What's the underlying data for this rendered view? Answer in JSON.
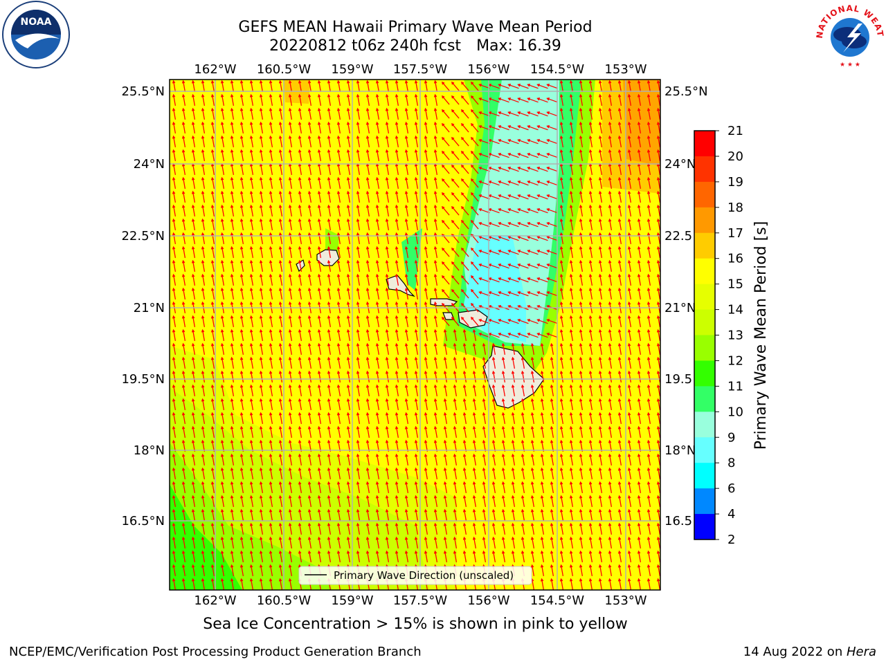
{
  "header": {
    "title_line1": "GEFS MEAN Hawaii Primary Wave Mean Period",
    "title_date": "20220812 t06z 240h fcst",
    "title_max": "Max: 16.39"
  },
  "logos": {
    "left": "noaa-logo",
    "left_text": "NOAA",
    "right": "nws-logo",
    "right_text": "NATIONAL WEATHER SERVICE"
  },
  "map": {
    "lon_ticks": [
      "162°W",
      "160.5°W",
      "159°W",
      "157.5°W",
      "156°W",
      "154.5°W",
      "153°W"
    ],
    "lat_ticks_left": [
      "25.5°N",
      "24°N",
      "22.5°N",
      "21°N",
      "19.5°N",
      "18°N",
      "16.5°N"
    ],
    "lat_ticks_right": [
      "25.5°N",
      "24°N",
      "22.5",
      "21°N",
      "19.5",
      "18°N",
      "16.5"
    ],
    "legend_label": "Primary Wave Direction (unscaled)",
    "arrow_color": "#ff0000",
    "grid_color": "#b0b0b0",
    "land_color": "#efecdc"
  },
  "colorbar": {
    "label": "Primary Wave Mean Period [s]",
    "ticks": [
      "21",
      "20",
      "19",
      "18",
      "17",
      "16",
      "15",
      "14",
      "13",
      "12",
      "11",
      "10",
      "9",
      "8",
      "6",
      "4",
      "2"
    ],
    "colors": [
      "#ff0000",
      "#ff3300",
      "#ff6600",
      "#ff9900",
      "#ffcc00",
      "#ffff00",
      "#e6ff00",
      "#ccff00",
      "#99ff00",
      "#33ff00",
      "#33ff66",
      "#99ffdd",
      "#66ffff",
      "#00ffff",
      "#0088ff",
      "#0000ff"
    ]
  },
  "notes": {
    "ice": "Sea Ice Concentration > 15% is shown in pink to yellow",
    "footer_left": "NCEP/EMC/Verification Post Processing Product Generation Branch",
    "footer_date": "14 Aug 2022 on ",
    "footer_host": "Hera"
  }
}
